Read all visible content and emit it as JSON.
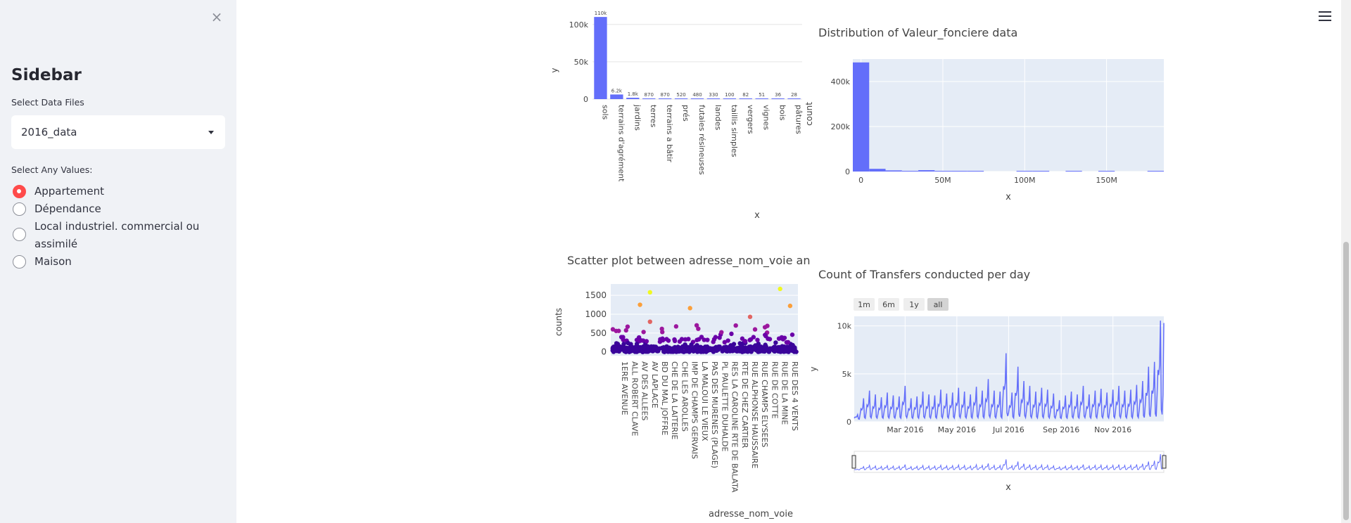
{
  "sidebar": {
    "close_label": "×",
    "title": "Sidebar",
    "files_label": "Select Data Files",
    "selected_file": "2016_data",
    "values_label": "Select Any Values:",
    "options": [
      {
        "label": "Appartement",
        "checked": true
      },
      {
        "label": "Dépendance",
        "checked": false
      },
      {
        "label": "Local industriel. commercial ou assimilé",
        "checked": false
      },
      {
        "label": "Maison",
        "checked": false
      }
    ]
  },
  "colors": {
    "accent": "#ff4b4b",
    "bar": "#636efa",
    "plot_bg": "#e5ecf6"
  },
  "charts": {
    "nature_bar": {
      "title": "",
      "xlabel": "x",
      "ylabel": "y",
      "yticks": [
        "0",
        "50k",
        "100k"
      ],
      "top_label": "110k"
    },
    "valeur_hist": {
      "title": "Distribution of Valeur_fonciere data",
      "xlabel": "x",
      "ylabel": "count",
      "yticks": [
        "0",
        "200k",
        "400k"
      ],
      "xticks": [
        "0",
        "50M",
        "100M",
        "150M"
      ]
    },
    "scatter": {
      "title": "Scatter plot between adresse_nom_voie an",
      "xlabel": "adresse_nom_voie",
      "ylabel": "counts",
      "yticks": [
        "0",
        "500",
        "1000",
        "1500"
      ]
    },
    "transfers": {
      "title": "Count of Transfers conducted per day",
      "xlabel": "x",
      "ylabel": "y",
      "yticks": [
        "0",
        "5k",
        "10k"
      ],
      "xticks": [
        "Mar 2016",
        "May 2016",
        "Jul 2016",
        "Sep 2016",
        "Nov 2016"
      ],
      "range_buttons": [
        "1m",
        "6m",
        "1y",
        "all"
      ],
      "active_range": "all"
    }
  },
  "chart_data": [
    {
      "type": "bar",
      "title": "",
      "xlabel": "x",
      "ylabel": "y",
      "categories": [
        "sols",
        "terrains d'agrément",
        "jardins",
        "terres",
        "terrains a bâtir",
        "prés",
        "futaies résineuses",
        "landes",
        "taillis simples",
        "vergers",
        "vignes",
        "bois",
        "pâtures"
      ],
      "values": [
        110000,
        6200,
        1800,
        870,
        870,
        520,
        480,
        330,
        100,
        82,
        51,
        36,
        28
      ],
      "data_labels": [
        "110k",
        "6.2k",
        "1.8k",
        "870",
        "870",
        "520",
        "480",
        "330",
        "100",
        "82",
        "51",
        "36",
        "28"
      ],
      "ylim": [
        0,
        112000
      ]
    },
    {
      "type": "bar",
      "title": "Distribution of Valeur_fonciere data",
      "xlabel": "x",
      "ylabel": "count",
      "x": [
        0,
        10000000,
        20000000,
        30000000,
        40000000,
        50000000,
        60000000,
        70000000,
        100000000,
        110000000,
        130000000,
        150000000,
        180000000
      ],
      "values": [
        485000,
        12000,
        5000,
        3000,
        6000,
        2000,
        1500,
        1000,
        1500,
        800,
        600,
        800,
        1500
      ],
      "xlim": [
        -5000000,
        185000000
      ],
      "ylim": [
        0,
        500000
      ]
    },
    {
      "type": "scatter",
      "title": "Scatter plot between adresse_nom_voie an",
      "xlabel": "adresse_nom_voie",
      "ylabel": "counts",
      "categories": [
        "1ERE AVENUE",
        "ALL ROBERT CLAVE",
        "AV DES ALLEES",
        "AV LAPLACE",
        "BD DU MAL JOFFRE",
        "CHE DE LA LAITERIE",
        "CHE LES AROLLES",
        "IMP DE CHAMPS GERVAIS",
        "LA MALOUI LE VIEUX",
        "PAS DES MURENES (PLAGE)",
        "PL PAULETTE DUHALDE",
        "RES LA CAROLINE RTE DE BALATA",
        "RTE DE CHEZ CARTIER",
        "RUE ALPHONSE HAUSSAIRE",
        "RUE CHAMPS ELYSEES",
        "RUE DE COTTE",
        "RUE DE LA MINE",
        "RUE DES 4 VENTS"
      ],
      "highlight_points": [
        {
          "x": "AV DES ALLEES",
          "y": 1250
        },
        {
          "x": "AV LAPLACE",
          "y": 1580
        },
        {
          "x": "AV LAPLACE",
          "y": 800
        },
        {
          "x": "IMP DE CHAMPS GERVAIS",
          "y": 1160
        },
        {
          "x": "RUE ALPHONSE HAUSSAIRE",
          "y": 930
        },
        {
          "x": "RUE DE LA MINE",
          "y": 1670
        },
        {
          "x": "RUE DES 4 VENTS",
          "y": 1220
        }
      ],
      "ylim": [
        -100,
        1800
      ]
    },
    {
      "type": "line",
      "title": "Count of Transfers conducted per day",
      "xlabel": "x",
      "ylabel": "y",
      "x_start": "2016-01-01",
      "x_end": "2016-12-31",
      "xticks": [
        "Mar 2016",
        "May 2016",
        "Jul 2016",
        "Sep 2016",
        "Nov 2016"
      ],
      "weekly_values": [
        500,
        2200,
        3000,
        2600,
        2300,
        2800,
        2500,
        2400,
        3500,
        2200,
        2400,
        2900,
        2600,
        2500,
        3100,
        2700,
        2800,
        3300,
        2900,
        2600,
        3400,
        3000,
        4200,
        3000,
        2900,
        6900,
        2800,
        5500,
        4000,
        3500,
        2900,
        3300,
        3100,
        2700,
        2000,
        2500,
        2900,
        2600,
        3500,
        2600,
        3000,
        3200,
        2800,
        3100,
        3500,
        3000,
        3100,
        3600,
        4000,
        5500,
        6000,
        10300
      ],
      "ylim": [
        0,
        11000
      ]
    }
  ]
}
